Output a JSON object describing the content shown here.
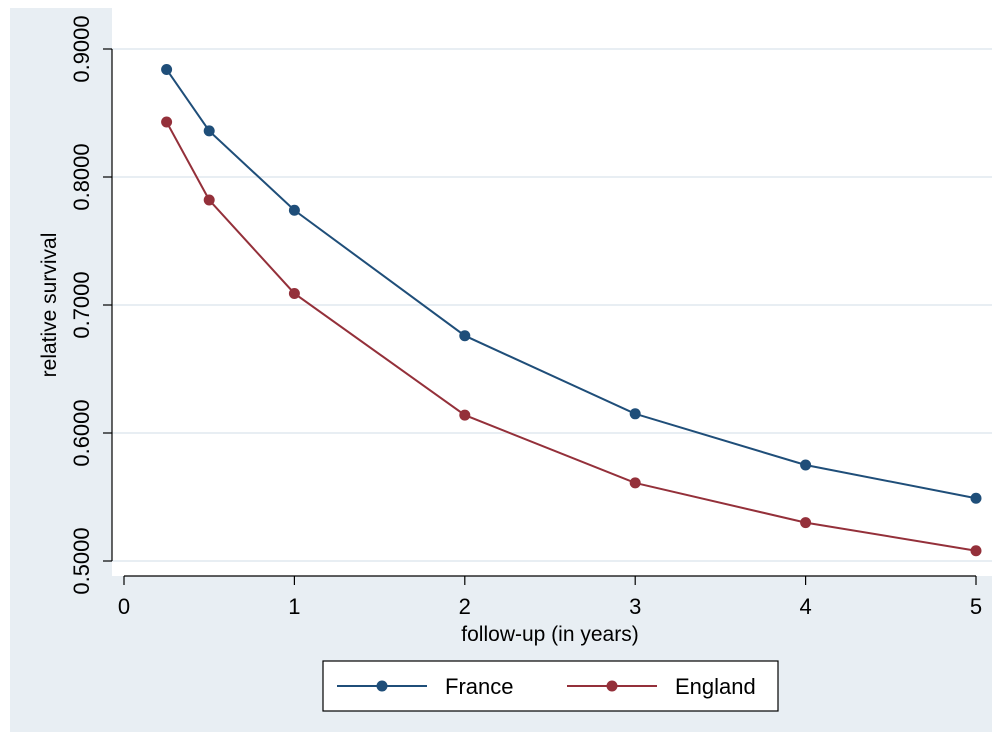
{
  "chart_data": {
    "type": "line",
    "title": "",
    "xlabel": "follow-up (in years)",
    "ylabel": "relative survival",
    "xlim": [
      0,
      5
    ],
    "ylim": [
      0.5,
      0.9
    ],
    "x_ticks": [
      0,
      1,
      2,
      3,
      4,
      5
    ],
    "x_tick_labels": [
      "0",
      "1",
      "2",
      "3",
      "4",
      "5"
    ],
    "y_ticks": [
      0.5,
      0.6,
      0.7,
      0.8,
      0.9
    ],
    "y_tick_labels": [
      "0.5000",
      "0.6000",
      "0.7000",
      "0.8000",
      "0.9000"
    ],
    "grid": "horizontal",
    "legend_position": "bottom",
    "x": [
      0.25,
      0.5,
      1,
      2,
      3,
      4,
      5
    ],
    "series": [
      {
        "name": "France",
        "color": "#1f4e79",
        "values": [
          0.884,
          0.836,
          0.774,
          0.676,
          0.615,
          0.575,
          0.549
        ]
      },
      {
        "name": "England",
        "color": "#94303a",
        "values": [
          0.843,
          0.782,
          0.709,
          0.614,
          0.561,
          0.53,
          0.508
        ]
      }
    ]
  },
  "colors": {
    "outer_background": "#e8eef3",
    "plot_background": "#ffffff",
    "grid": "#e8eef3",
    "axis": "#000000"
  }
}
